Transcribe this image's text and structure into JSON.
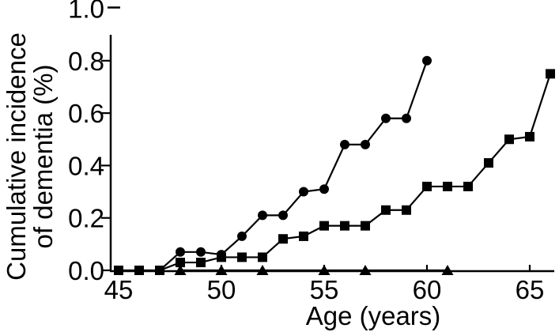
{
  "figure": {
    "background": "#ffffff",
    "ink_color": "#000000"
  },
  "chart_data": {
    "type": "line",
    "title": "",
    "xlabel": "Age (years)",
    "ylabel_line1": "Cumulative incidence",
    "ylabel_line2": "of dementia (%)",
    "xlim": [
      45,
      66
    ],
    "ylim": [
      0.0,
      1.0
    ],
    "grid": false,
    "legend": "none",
    "x_ticks": [
      {
        "value": 45,
        "label": "45"
      },
      {
        "value": 50,
        "label": "50"
      },
      {
        "value": 55,
        "label": "55"
      },
      {
        "value": 60,
        "label": "60"
      },
      {
        "value": 65,
        "label": "65"
      }
    ],
    "y_ticks": [
      {
        "value": 0.0,
        "label": "0.0"
      },
      {
        "value": 0.2,
        "label": "0.2"
      },
      {
        "value": 0.4,
        "label": "0.4"
      },
      {
        "value": 0.6,
        "label": "0.6"
      },
      {
        "value": 0.8,
        "label": "0.8"
      },
      {
        "value": 1.0,
        "label": "1.0"
      }
    ],
    "series": [
      {
        "name": "circle-series",
        "marker": "circle",
        "color": "#000000",
        "points": [
          [
            47,
            0.0
          ],
          [
            48,
            0.07
          ],
          [
            49,
            0.07
          ],
          [
            50,
            0.06
          ],
          [
            51,
            0.13
          ],
          [
            52,
            0.21
          ],
          [
            53,
            0.21
          ],
          [
            54,
            0.3
          ],
          [
            55,
            0.31
          ],
          [
            56,
            0.48
          ],
          [
            57,
            0.48
          ],
          [
            58,
            0.58
          ],
          [
            59,
            0.58
          ],
          [
            60,
            0.8
          ]
        ]
      },
      {
        "name": "square-series",
        "marker": "square",
        "color": "#000000",
        "points": [
          [
            45,
            0.0
          ],
          [
            46,
            0.0
          ],
          [
            47,
            0.0
          ],
          [
            48,
            0.03
          ],
          [
            49,
            0.03
          ],
          [
            50,
            0.05
          ],
          [
            51,
            0.05
          ],
          [
            52,
            0.05
          ],
          [
            53,
            0.12
          ],
          [
            54,
            0.13
          ],
          [
            55,
            0.17
          ],
          [
            56,
            0.17
          ],
          [
            57,
            0.17
          ],
          [
            58,
            0.23
          ],
          [
            59,
            0.23
          ],
          [
            60,
            0.32
          ],
          [
            61,
            0.32
          ],
          [
            62,
            0.32
          ],
          [
            63,
            0.41
          ],
          [
            64,
            0.5
          ],
          [
            65,
            0.51
          ],
          [
            66,
            0.75
          ]
        ]
      },
      {
        "name": "triangle-series",
        "marker": "triangle",
        "color": "#000000",
        "points": [
          [
            48,
            0.0
          ],
          [
            50,
            0.0
          ],
          [
            52,
            0.0
          ],
          [
            55,
            0.0
          ],
          [
            57,
            0.0
          ],
          [
            61,
            0.0
          ]
        ]
      }
    ]
  }
}
